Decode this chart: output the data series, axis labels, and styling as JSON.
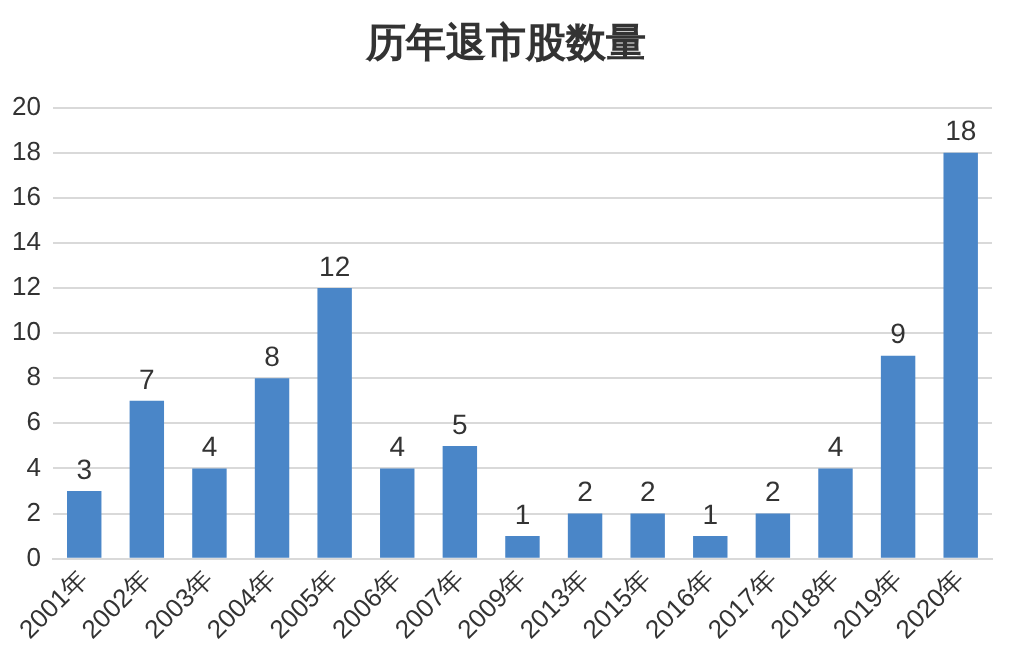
{
  "chart_data": {
    "type": "bar",
    "title": "历年退市股数量",
    "categories": [
      "2001年",
      "2002年",
      "2003年",
      "2004年",
      "2005年",
      "2006年",
      "2007年",
      "2009年",
      "2013年",
      "2015年",
      "2016年",
      "2017年",
      "2018年",
      "2019年",
      "2020年"
    ],
    "values": [
      3,
      7,
      4,
      8,
      12,
      4,
      5,
      1,
      2,
      2,
      1,
      2,
      4,
      9,
      18
    ],
    "color": "#4a86c8",
    "ylim": [
      0,
      20
    ],
    "yticks": [
      0,
      2,
      4,
      6,
      8,
      10,
      12,
      14,
      16,
      18,
      20
    ],
    "grid": "y",
    "data_labels": true
  }
}
